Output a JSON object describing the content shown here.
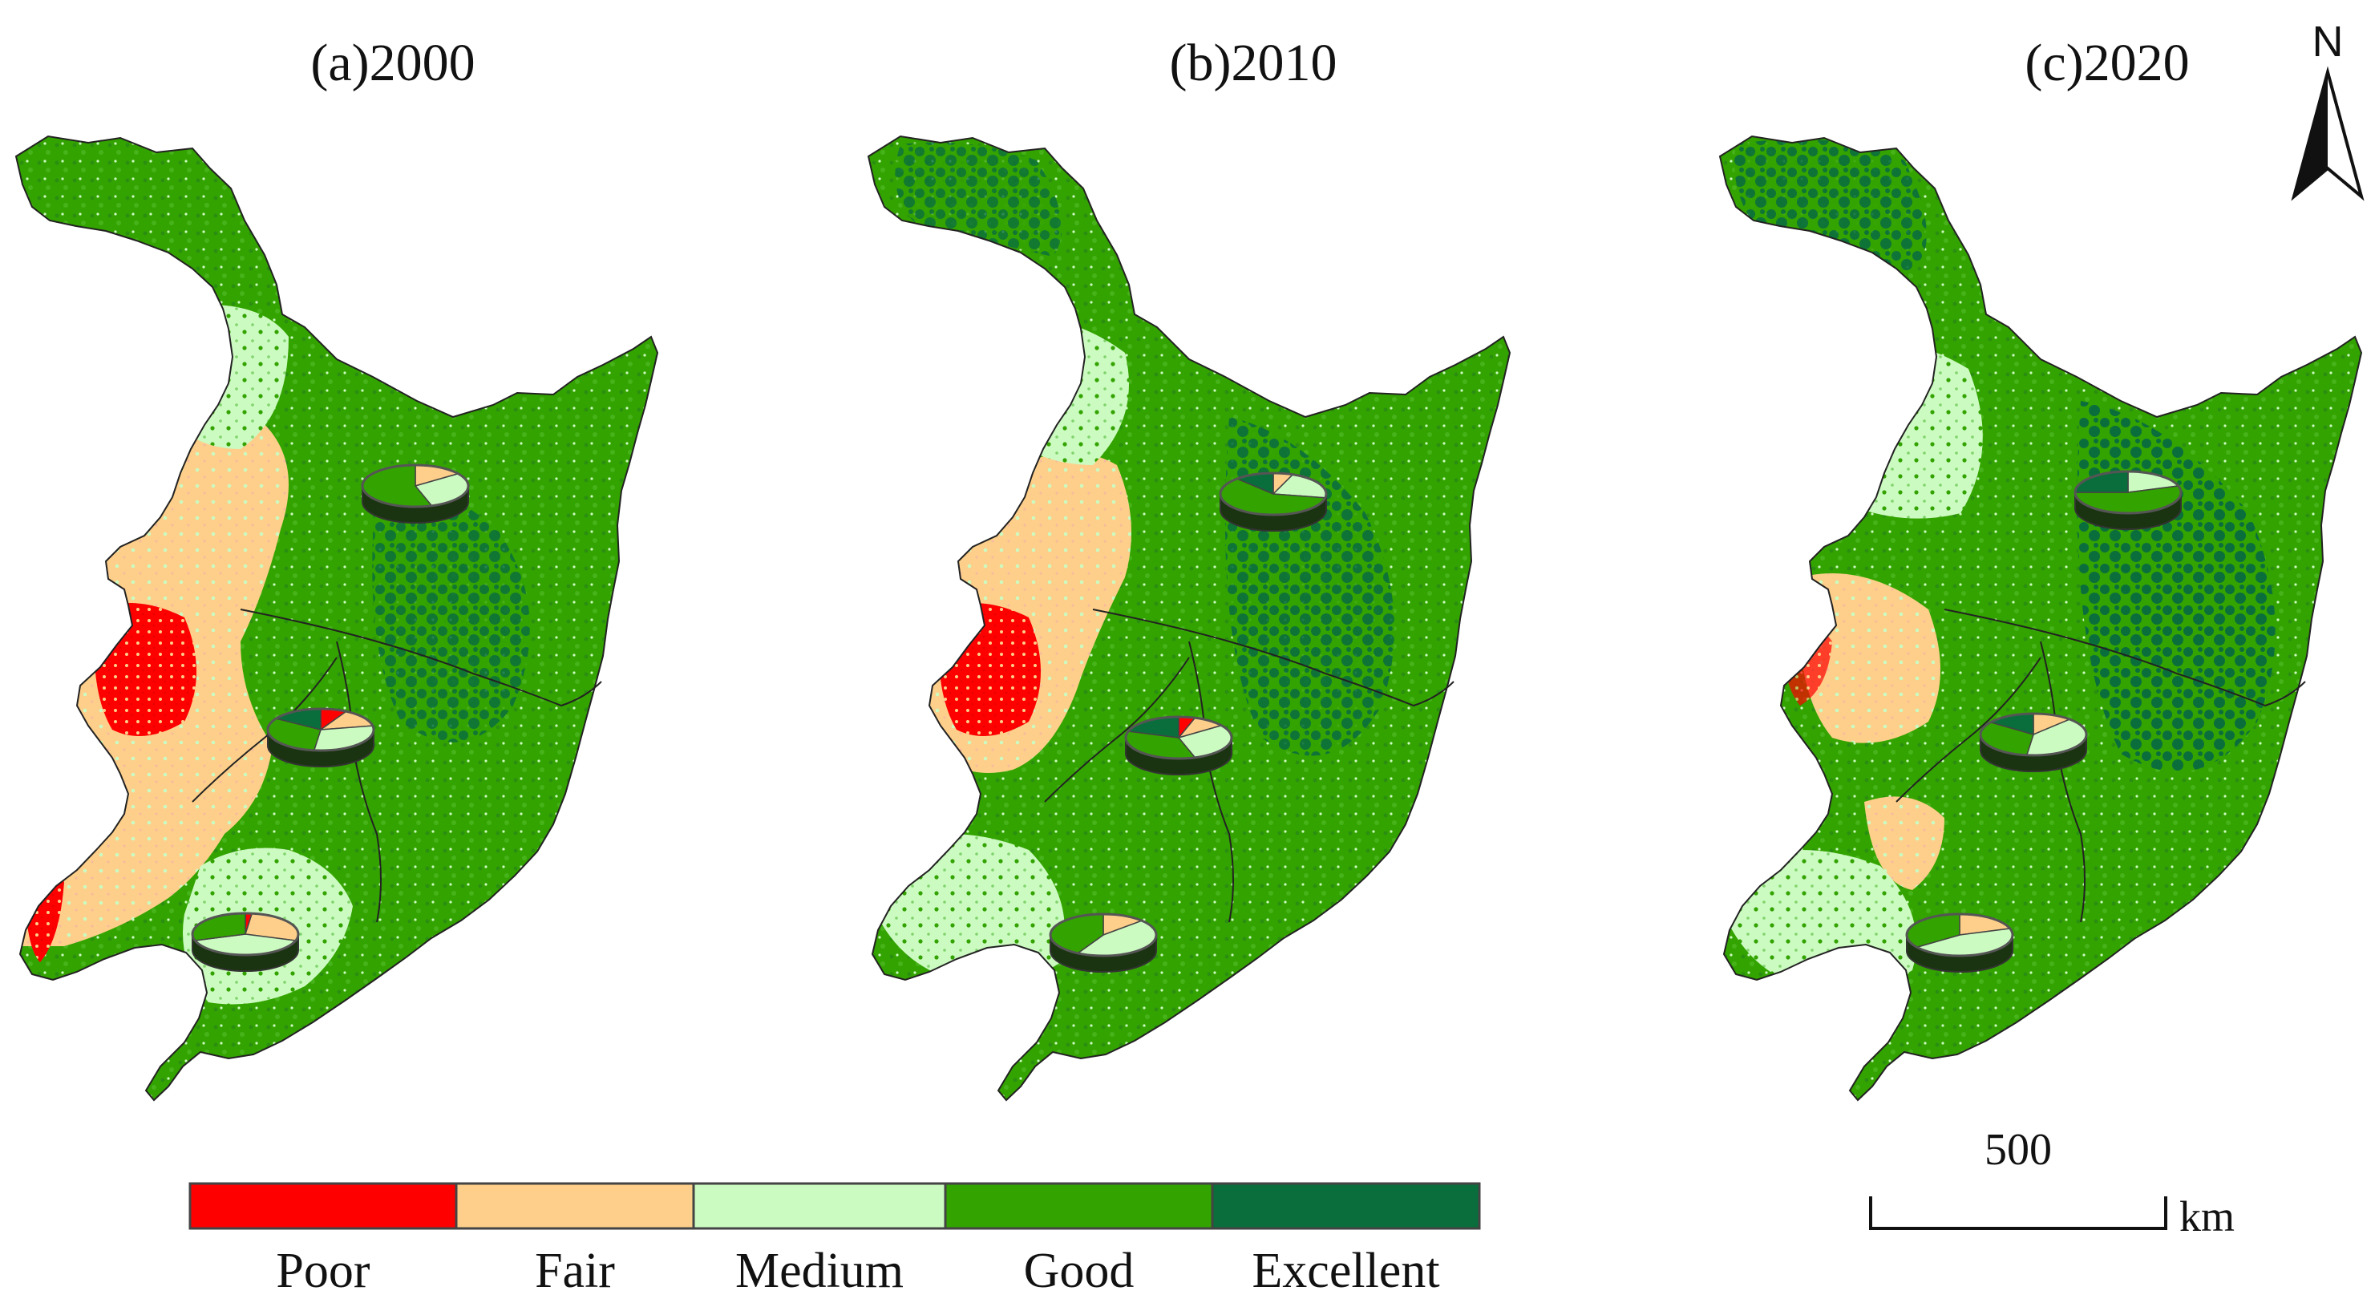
{
  "panels": [
    {
      "title": "(a)2000",
      "pies": [
        {
          "region": "north",
          "values": [
            0,
            0.15,
            0.3,
            0.55,
            0
          ]
        },
        {
          "region": "central",
          "values": [
            0.08,
            0.14,
            0.3,
            0.32,
            0.16
          ]
        },
        {
          "region": "south",
          "values": [
            0.02,
            0.28,
            0.4,
            0.3,
            0
          ]
        }
      ]
    },
    {
      "title": "(b)2010",
      "pies": [
        {
          "region": "north",
          "values": [
            0,
            0.06,
            0.22,
            0.6,
            0.12
          ]
        },
        {
          "region": "central",
          "values": [
            0.05,
            0.1,
            0.3,
            0.35,
            0.2
          ]
        },
        {
          "region": "south",
          "values": [
            0,
            0.13,
            0.45,
            0.42,
            0
          ]
        }
      ]
    },
    {
      "title": "(c)2020",
      "pies": [
        {
          "region": "north",
          "values": [
            0,
            0,
            0.2,
            0.55,
            0.25
          ]
        },
        {
          "region": "central",
          "values": [
            0,
            0.12,
            0.4,
            0.33,
            0.15
          ]
        },
        {
          "region": "south",
          "values": [
            0,
            0.2,
            0.45,
            0.35,
            0
          ]
        }
      ]
    }
  ],
  "legend": {
    "classes": [
      {
        "label": "Poor",
        "color": "#ff0000"
      },
      {
        "label": "Fair",
        "color": "#fdcf8a"
      },
      {
        "label": "Medium",
        "color": "#ccfbc2"
      },
      {
        "label": "Good",
        "color": "#33a300"
      },
      {
        "label": "Excellent",
        "color": "#0a6e3c"
      }
    ]
  },
  "north_arrow": {
    "label": "N"
  },
  "scale_bar": {
    "value": "500",
    "unit": "km"
  }
}
